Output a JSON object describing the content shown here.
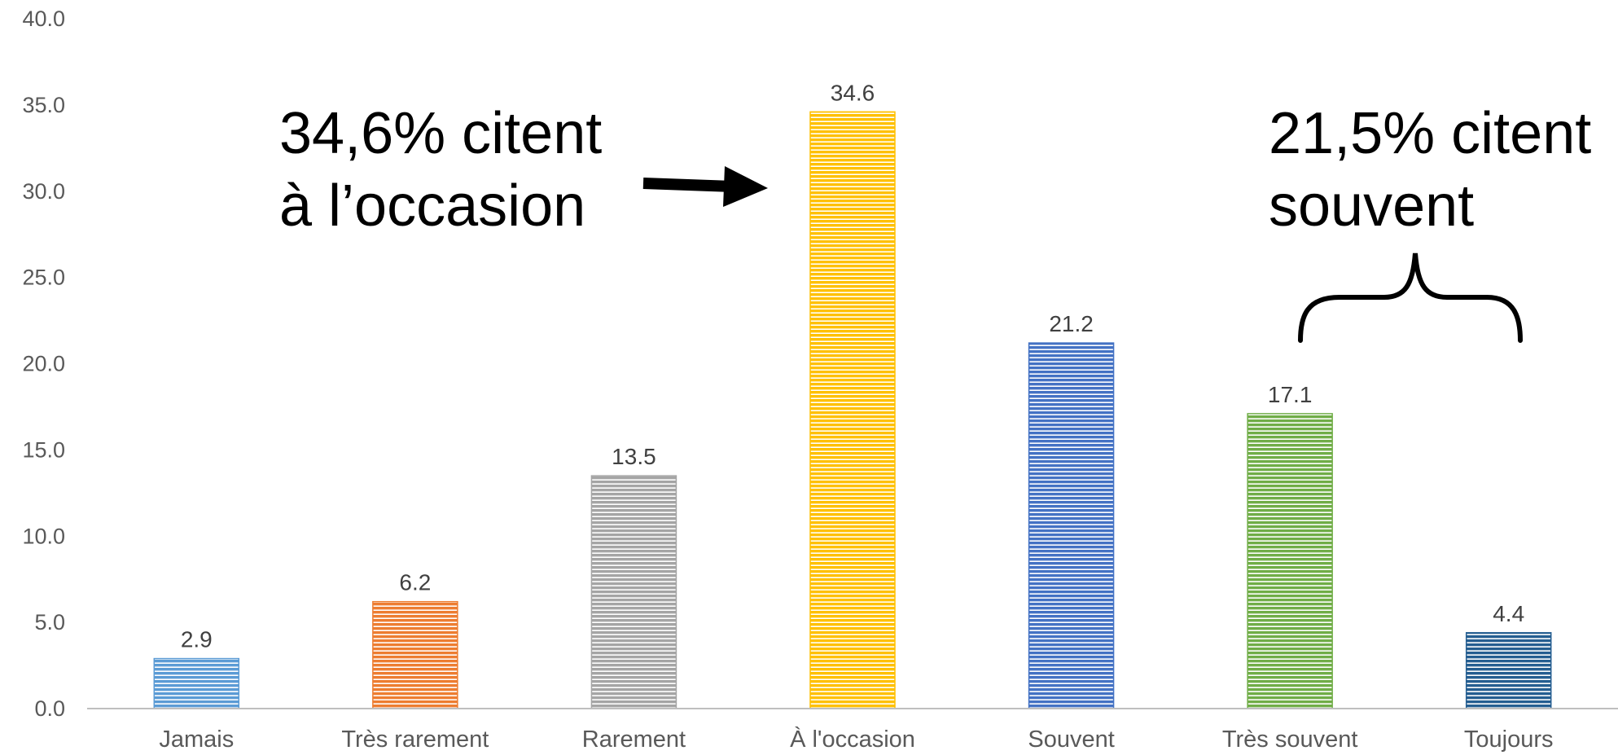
{
  "chart_data": {
    "type": "bar",
    "title": "",
    "xlabel": "",
    "ylabel": "",
    "ylim": [
      0,
      40
    ],
    "ytick_labels": [
      "0.0",
      "5.0",
      "10.0",
      "15.0",
      "20.0",
      "25.0",
      "30.0",
      "35.0",
      "40.0"
    ],
    "categories": [
      "Jamais",
      "Très rarement",
      "Rarement",
      "À l'occasion",
      "Souvent",
      "Très souvent",
      "Toujours"
    ],
    "values": [
      2.9,
      6.2,
      13.5,
      34.6,
      21.2,
      17.1,
      4.4
    ],
    "data_labels": [
      "2.9",
      "6.2",
      "13.5",
      "34.6",
      "21.2",
      "17.1",
      "4.4"
    ],
    "colors": [
      "#5B9BD5",
      "#ED7D31",
      "#A5A5A5",
      "#FFC000",
      "#4472C4",
      "#70AD47",
      "#255E91"
    ],
    "grid": false,
    "legend": "none",
    "annotations": [
      {
        "lines": [
          "34,6% citent",
          "à l’occasion"
        ],
        "points_to": "À l'occasion",
        "marker": "arrow"
      },
      {
        "lines": [
          "21,5% citent",
          "souvent"
        ],
        "spans": [
          "Très souvent",
          "Toujours"
        ],
        "marker": "brace"
      }
    ]
  }
}
